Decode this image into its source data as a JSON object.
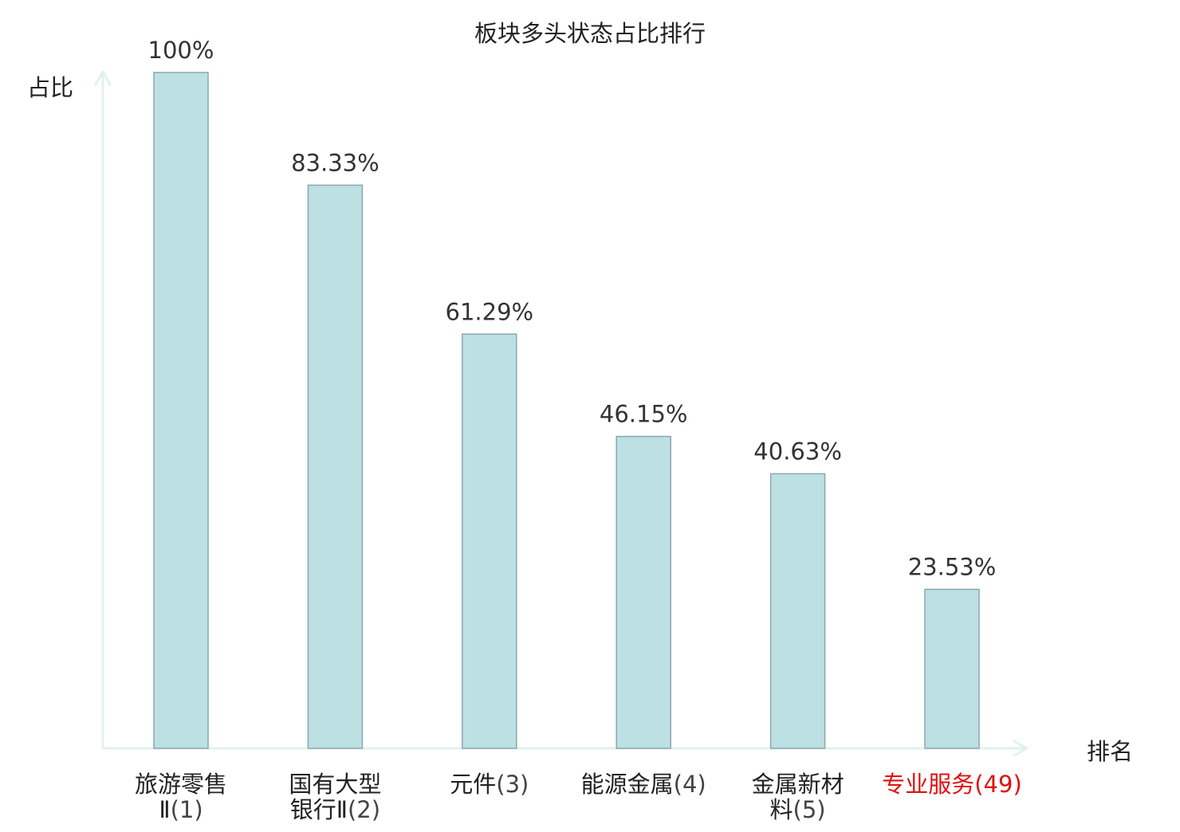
{
  "chart_data": {
    "type": "bar",
    "title": "板块多头状态占比排行",
    "ylabel": "占比",
    "xlabel": "排名",
    "ylim": [
      0,
      100
    ],
    "grid": false,
    "legend": "none",
    "categories": [
      {
        "name_lines": [
          "旅游零售",
          "Ⅱ"
        ],
        "rank": "(1)",
        "highlight": false
      },
      {
        "name_lines": [
          "国有大型",
          "银行Ⅱ"
        ],
        "rank": "(2)",
        "highlight": false
      },
      {
        "name_lines": [
          "元件"
        ],
        "rank": "(3)",
        "highlight": false
      },
      {
        "name_lines": [
          "能源金属"
        ],
        "rank": "(4)",
        "highlight": false
      },
      {
        "name_lines": [
          "金属新材",
          "料"
        ],
        "rank": "(5)",
        "highlight": false
      },
      {
        "name_lines": [
          "专业服务"
        ],
        "rank": "(49)",
        "highlight": true
      }
    ],
    "values": [
      100,
      83.33,
      61.29,
      46.15,
      40.63,
      23.53
    ],
    "value_labels": [
      "100%",
      "83.33%",
      "61.29%",
      "46.15%",
      "40.63%",
      "23.53%"
    ],
    "colors": {
      "bar_fill": "#bde0e3",
      "bar_stroke": "#8aa8ad",
      "axis": "#e0f2ef",
      "label_text": "#333333",
      "category_text": "#222222",
      "rank_text": "#444444",
      "highlight_text": "#e01010"
    }
  }
}
